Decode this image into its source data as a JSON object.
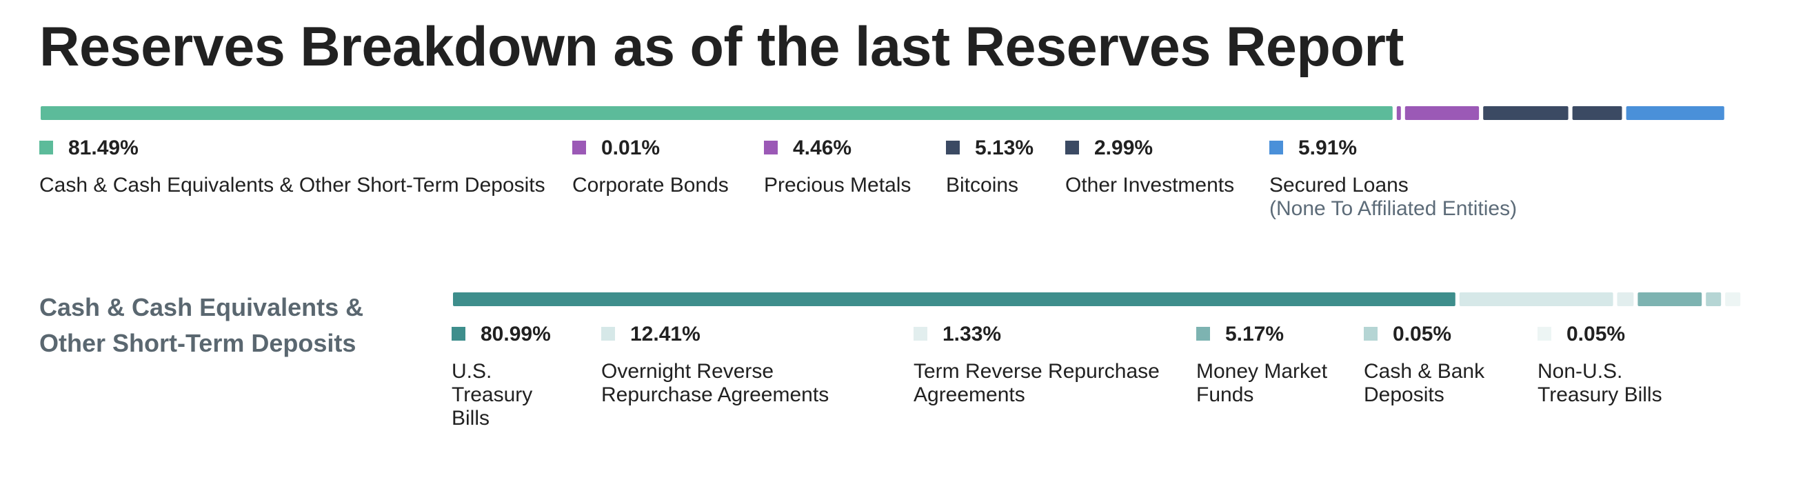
{
  "title": "Reserves Breakdown as of the last Reserves Report",
  "chart_data": [
    {
      "type": "bar",
      "orientation": "horizontal-stacked",
      "unit": "%",
      "categories": [
        "Cash & Cash Equivalents & Other Short-Term Deposits",
        "Corporate Bonds",
        "Precious Metals",
        "Bitcoins",
        "Other Investments",
        "Secured Loans"
      ],
      "values": [
        81.49,
        0.01,
        4.46,
        5.13,
        2.99,
        5.91
      ],
      "value_labels": [
        "81.49%",
        "0.01%",
        "4.46%",
        "5.13%",
        "2.99%",
        "5.91%"
      ],
      "notes": [
        "",
        "",
        "",
        "",
        "",
        "(None To Affiliated Entities)"
      ],
      "colors": [
        "#5cbb9a",
        "#9b59b6",
        "#9b59b6",
        "#3b4a63",
        "#3b4a63",
        "#4a90d9"
      ]
    },
    {
      "type": "bar",
      "orientation": "horizontal-stacked",
      "unit": "%",
      "title": "Cash & Cash Equivalents & Other Short-Term Deposits",
      "categories": [
        "U.S. Treasury Bills",
        "Overnight Reverse Repurchase Agreements",
        "Term Reverse Repurchase Agreements",
        "Money Market Funds",
        "Cash & Bank Deposits",
        "Non-U.S. Treasury Bills"
      ],
      "values": [
        80.99,
        12.41,
        1.33,
        5.17,
        0.05,
        0.05
      ],
      "value_labels": [
        "80.99%",
        "12.41%",
        "1.33%",
        "5.17%",
        "0.05%",
        "0.05%"
      ],
      "colors": [
        "#3e8e8c",
        "#d6e8e8",
        "#e2eeee",
        "#7db3b1",
        "#b5d5d4",
        "#edf5f4"
      ]
    }
  ]
}
